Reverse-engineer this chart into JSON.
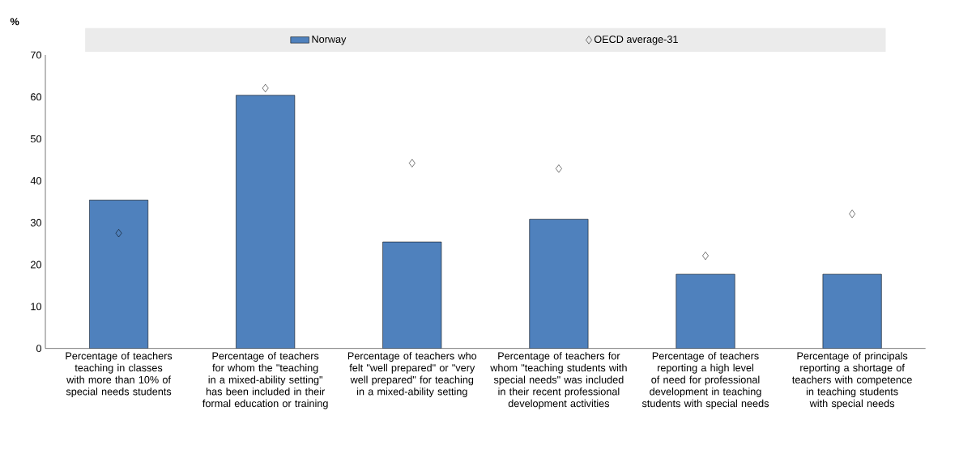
{
  "chart_data": {
    "type": "bar",
    "ylabel": "%",
    "categories": [
      "Percentage of teachers teaching in classes with more than 10% of special needs students",
      "Percentage of teachers for whom the \"teaching in a mixed-ability setting\" has been included in their formal education or training",
      "Percentage of teachers who felt \"well prepared\" or \"very well prepared\" for teaching in a mixed-ability setting",
      "Percentage of teachers for whom \"teaching students with special needs\" was included in their recent professional development activities",
      "Percentage of teachers reporting a high level of need for professional development in teaching students with special needs",
      "Percentage of principals reporting a shortage of teachers with competence in teaching students with special needs"
    ],
    "series": [
      {
        "name": "Norway",
        "color": "#4f81bd",
        "values": [
          35.4,
          60.4,
          25.4,
          30.8,
          17.7,
          17.7
        ]
      },
      {
        "name": "OECD average-31",
        "type": "scatter",
        "marker": "diamond",
        "color": "#000000",
        "values": [
          27.5,
          62.1,
          44.2,
          42.9,
          22.1,
          32.1
        ]
      }
    ],
    "ylim": [
      0,
      70
    ],
    "yticks": [
      0,
      10,
      20,
      30,
      40,
      50,
      60,
      70
    ],
    "legend": "top",
    "grid": false
  }
}
